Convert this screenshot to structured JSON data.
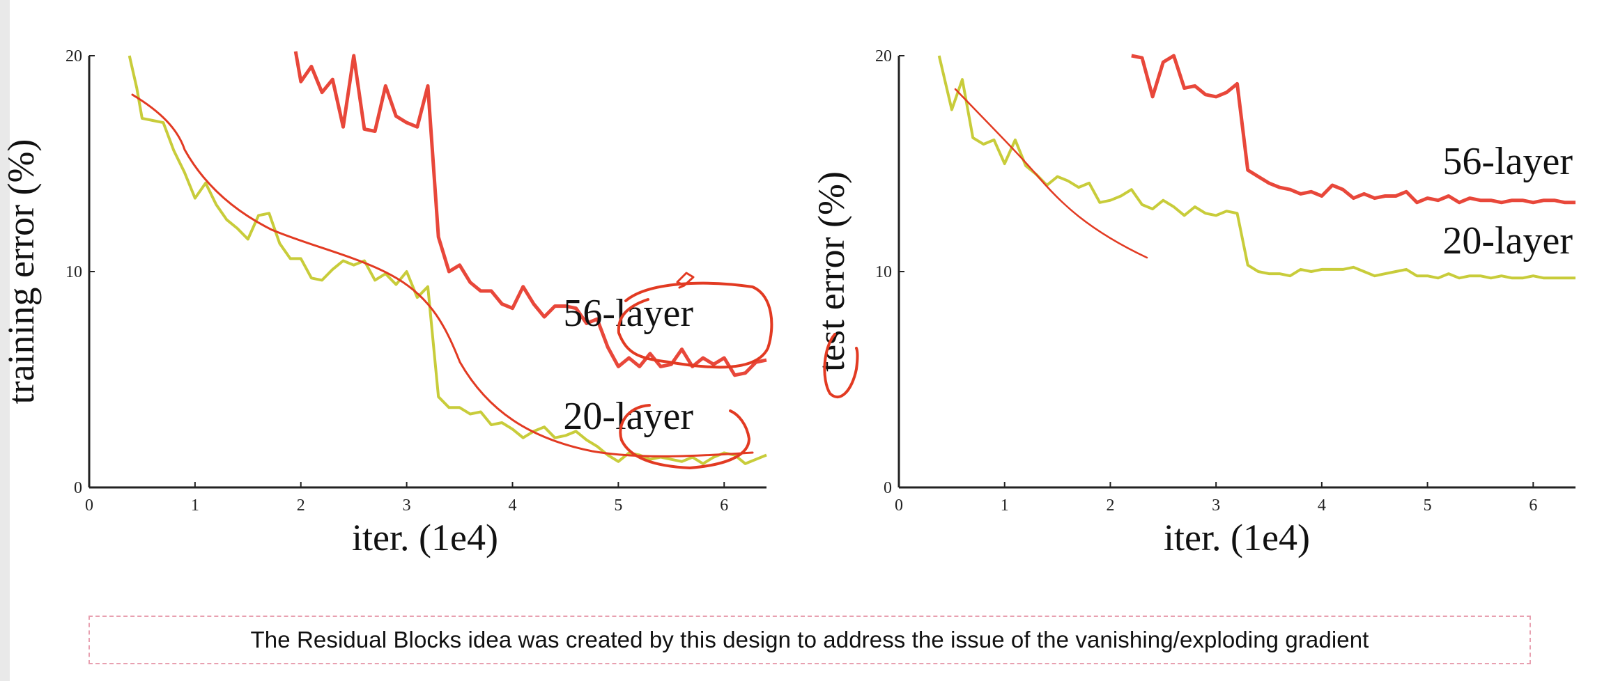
{
  "chart_data": [
    {
      "type": "line",
      "title": "",
      "xlabel": "iter. (1e4)",
      "ylabel": "training error (%)",
      "xlim": [
        0,
        6.4
      ],
      "ylim": [
        0,
        20
      ],
      "xticks": [
        "0",
        "1",
        "2",
        "3",
        "4",
        "5",
        "6"
      ],
      "yticks": [
        "0",
        "10",
        "20"
      ],
      "series": [
        {
          "name": "56-layer",
          "color": "#e8473a",
          "x": [
            1.95,
            2.0,
            2.1,
            2.2,
            2.3,
            2.4,
            2.5,
            2.6,
            2.7,
            2.8,
            2.9,
            3.0,
            3.1,
            3.2,
            3.3,
            3.4,
            3.5,
            3.6,
            3.7,
            3.8,
            3.9,
            4.0,
            4.1,
            4.2,
            4.3,
            4.4,
            4.5,
            4.6,
            4.7,
            4.8,
            4.9,
            5.0,
            5.1,
            5.2,
            5.3,
            5.4,
            5.5,
            5.6,
            5.7,
            5.8,
            5.9,
            6.0,
            6.1,
            6.2,
            6.3,
            6.4
          ],
          "values": [
            20.2,
            18.8,
            19.5,
            18.3,
            18.9,
            16.7,
            20.0,
            16.6,
            16.5,
            18.6,
            17.2,
            16.9,
            16.7,
            18.6,
            11.6,
            10.0,
            10.3,
            9.5,
            9.1,
            9.1,
            8.5,
            8.3,
            9.3,
            8.5,
            7.9,
            8.4,
            8.4,
            8.3,
            7.6,
            7.8,
            6.5,
            5.6,
            6.0,
            5.6,
            6.2,
            5.6,
            5.7,
            6.4,
            5.6,
            6.0,
            5.7,
            6.0,
            5.2,
            5.3,
            5.8,
            5.9
          ]
        },
        {
          "name": "20-layer",
          "color": "#c8cc3a",
          "x": [
            0.38,
            0.45,
            0.5,
            0.6,
            0.7,
            0.8,
            0.9,
            1.0,
            1.1,
            1.2,
            1.3,
            1.4,
            1.5,
            1.6,
            1.7,
            1.8,
            1.9,
            2.0,
            2.1,
            2.2,
            2.3,
            2.4,
            2.5,
            2.6,
            2.7,
            2.8,
            2.9,
            3.0,
            3.1,
            3.2,
            3.3,
            3.4,
            3.5,
            3.6,
            3.7,
            3.8,
            3.9,
            4.0,
            4.1,
            4.2,
            4.3,
            4.4,
            4.5,
            4.6,
            4.7,
            4.8,
            4.9,
            5.0,
            5.1,
            5.2,
            5.3,
            5.4,
            5.5,
            5.6,
            5.7,
            5.8,
            5.9,
            6.0,
            6.1,
            6.2,
            6.3,
            6.4
          ],
          "values": [
            20.0,
            18.5,
            17.1,
            17.0,
            16.9,
            15.6,
            14.6,
            13.4,
            14.1,
            13.1,
            12.4,
            12.0,
            11.5,
            12.6,
            12.7,
            11.3,
            10.6,
            10.6,
            9.7,
            9.6,
            10.1,
            10.5,
            10.3,
            10.5,
            9.6,
            9.9,
            9.4,
            10.0,
            8.8,
            9.3,
            4.2,
            3.7,
            3.7,
            3.4,
            3.5,
            2.9,
            3.0,
            2.7,
            2.3,
            2.6,
            2.8,
            2.3,
            2.4,
            2.6,
            2.2,
            1.9,
            1.5,
            1.2,
            1.6,
            1.5,
            1.3,
            1.4,
            1.3,
            1.2,
            1.4,
            1.1,
            1.4,
            1.6,
            1.5,
            1.1,
            1.3,
            1.5
          ]
        }
      ]
    },
    {
      "type": "line",
      "title": "",
      "xlabel": "iter. (1e4)",
      "ylabel": "test error (%)",
      "xlim": [
        0,
        6.4
      ],
      "ylim": [
        0,
        20
      ],
      "xticks": [
        "0",
        "1",
        "2",
        "3",
        "4",
        "5",
        "6"
      ],
      "yticks": [
        "0",
        "10",
        "20"
      ],
      "series": [
        {
          "name": "56-layer",
          "color": "#e8473a",
          "x": [
            2.2,
            2.3,
            2.4,
            2.5,
            2.6,
            2.7,
            2.8,
            2.9,
            3.0,
            3.1,
            3.2,
            3.3,
            3.4,
            3.5,
            3.6,
            3.7,
            3.8,
            3.9,
            4.0,
            4.1,
            4.2,
            4.3,
            4.4,
            4.5,
            4.6,
            4.7,
            4.8,
            4.9,
            5.0,
            5.1,
            5.2,
            5.3,
            5.4,
            5.5,
            5.6,
            5.7,
            5.8,
            5.9,
            6.0,
            6.1,
            6.2,
            6.3,
            6.4
          ],
          "values": [
            20.0,
            19.9,
            18.1,
            19.7,
            20.0,
            18.5,
            18.6,
            18.2,
            18.1,
            18.3,
            18.7,
            14.7,
            14.4,
            14.1,
            13.9,
            13.8,
            13.6,
            13.7,
            13.5,
            14.0,
            13.8,
            13.4,
            13.6,
            13.4,
            13.5,
            13.5,
            13.7,
            13.2,
            13.4,
            13.3,
            13.5,
            13.2,
            13.4,
            13.3,
            13.3,
            13.2,
            13.3,
            13.3,
            13.2,
            13.3,
            13.3,
            13.2,
            13.2
          ]
        },
        {
          "name": "20-layer",
          "color": "#c8cc3a",
          "x": [
            0.38,
            0.5,
            0.6,
            0.7,
            0.8,
            0.9,
            1.0,
            1.1,
            1.2,
            1.3,
            1.4,
            1.5,
            1.6,
            1.7,
            1.8,
            1.9,
            2.0,
            2.1,
            2.2,
            2.3,
            2.4,
            2.5,
            2.6,
            2.7,
            2.8,
            2.9,
            3.0,
            3.1,
            3.2,
            3.3,
            3.4,
            3.5,
            3.6,
            3.7,
            3.8,
            3.9,
            4.0,
            4.1,
            4.2,
            4.3,
            4.4,
            4.5,
            4.6,
            4.7,
            4.8,
            4.9,
            5.0,
            5.1,
            5.2,
            5.3,
            5.4,
            5.5,
            5.6,
            5.7,
            5.8,
            5.9,
            6.0,
            6.1,
            6.2,
            6.3,
            6.4
          ],
          "values": [
            20.0,
            17.5,
            18.9,
            16.2,
            15.9,
            16.1,
            15.0,
            16.1,
            14.9,
            14.5,
            14.0,
            14.4,
            14.2,
            13.9,
            14.1,
            13.2,
            13.3,
            13.5,
            13.8,
            13.1,
            12.9,
            13.3,
            13.0,
            12.6,
            13.0,
            12.7,
            12.6,
            12.8,
            12.7,
            10.3,
            10.0,
            9.9,
            9.9,
            9.8,
            10.1,
            10.0,
            10.1,
            10.1,
            10.1,
            10.2,
            10.0,
            9.8,
            9.9,
            10.0,
            10.1,
            9.8,
            9.8,
            9.7,
            9.9,
            9.7,
            9.8,
            9.8,
            9.7,
            9.8,
            9.7,
            9.7,
            9.8,
            9.7,
            9.7,
            9.7,
            9.7
          ]
        }
      ]
    }
  ],
  "caption": "The Residual Blocks idea was created by this design to address the issue of the vanishing/exploding gradient"
}
